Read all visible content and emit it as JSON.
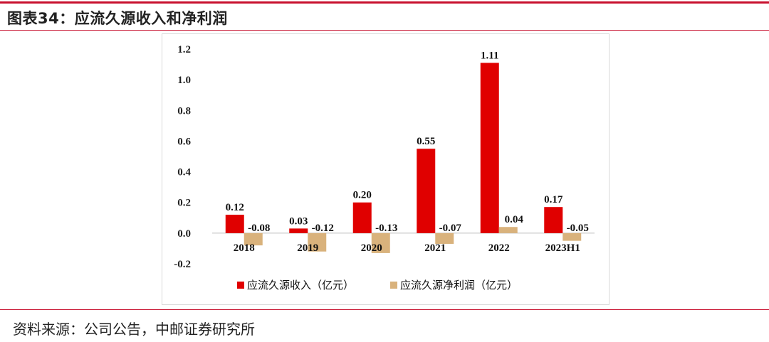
{
  "header": {
    "title": "图表34：应流久源收入和净利润"
  },
  "footer": {
    "source": "资料来源：公司公告，中邮证券研究所"
  },
  "colors": {
    "accent": "#c8102e",
    "series1": "#e00000",
    "series2": "#d9b27c"
  },
  "chart_data": {
    "type": "bar",
    "title": "",
    "categories": [
      "2018",
      "2019",
      "2020",
      "2021",
      "2022",
      "2023H1"
    ],
    "series": [
      {
        "name": "应流久源收入（亿元）",
        "values": [
          0.12,
          0.03,
          0.2,
          0.55,
          1.11,
          0.17
        ],
        "labels": [
          "0.12",
          "0.03",
          "0.20",
          "0.55",
          "1.11",
          "0.17"
        ]
      },
      {
        "name": "应流久源净利润（亿元）",
        "values": [
          -0.08,
          -0.12,
          -0.13,
          -0.07,
          0.04,
          -0.05
        ],
        "labels": [
          "-0.08",
          "-0.12",
          "-0.13",
          "-0.07",
          "0.04",
          "-0.05"
        ]
      }
    ],
    "yticks": [
      "-0.2",
      "0.0",
      "0.2",
      "0.4",
      "0.6",
      "0.8",
      "1.0",
      "1.2"
    ],
    "ylim": [
      -0.2,
      1.2
    ],
    "xlabel": "",
    "ylabel": "",
    "grid": false,
    "legend": "bottom"
  }
}
